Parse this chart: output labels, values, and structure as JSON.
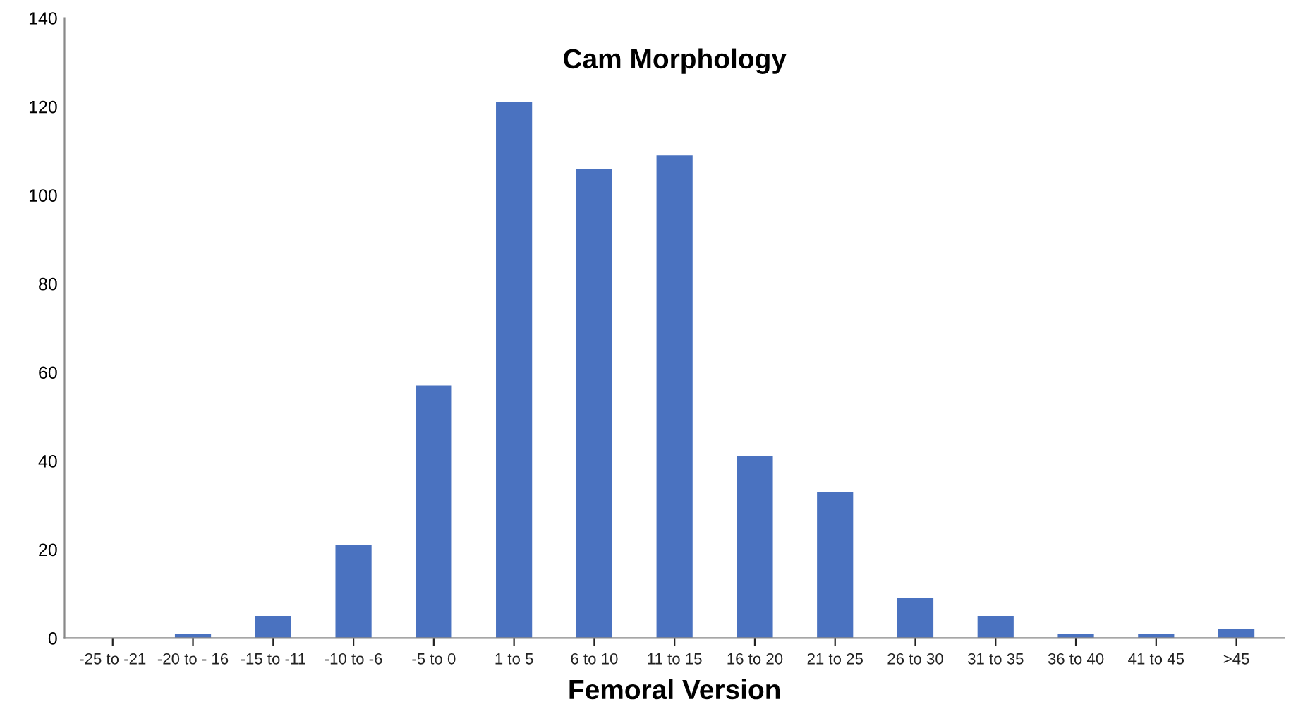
{
  "chart_data": {
    "type": "bar",
    "title": "Cam Morphology",
    "xlabel": "Femoral Version",
    "categories": [
      "-25 to -21",
      "-20 to - 16",
      "-15 to -11",
      "-10 to -6",
      "-5 to 0",
      "1 to 5",
      "6 to 10",
      "11 to 15",
      "16 to 20",
      "21 to 25",
      "26 to 30",
      "31 to 35",
      "36 to 40",
      "41 to 45",
      ">45"
    ],
    "values": [
      0,
      1,
      5,
      21,
      57,
      121,
      106,
      109,
      41,
      33,
      9,
      5,
      1,
      1,
      2
    ],
    "color": "#4a72c0",
    "ylim": [
      0,
      140
    ],
    "yticks": [
      0,
      20,
      40,
      60,
      80,
      100,
      120,
      140
    ],
    "grid": false,
    "legend": false
  }
}
